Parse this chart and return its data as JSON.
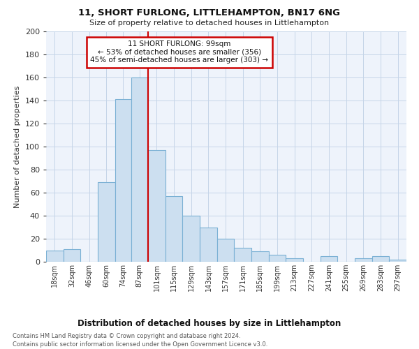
{
  "title": "11, SHORT FURLONG, LITTLEHAMPTON, BN17 6NG",
  "subtitle": "Size of property relative to detached houses in Littlehampton",
  "xlabel": "Distribution of detached houses by size in Littlehampton",
  "ylabel": "Number of detached properties",
  "footnote1": "Contains HM Land Registry data © Crown copyright and database right 2024.",
  "footnote2": "Contains public sector information licensed under the Open Government Licence v3.0.",
  "bar_color": "#ccdff0",
  "bar_edge_color": "#7ab0d4",
  "highlight_line_color": "#cc0000",
  "annotation_line1": "11 SHORT FURLONG: 99sqm",
  "annotation_line2": "← 53% of detached houses are smaller (356)",
  "annotation_line3": "45% of semi-detached houses are larger (303) →",
  "annotation_box_color": "#cc0000",
  "categories": [
    "18sqm",
    "32sqm",
    "46sqm",
    "60sqm",
    "74sqm",
    "87sqm",
    "101sqm",
    "115sqm",
    "129sqm",
    "143sqm",
    "157sqm",
    "171sqm",
    "185sqm",
    "199sqm",
    "213sqm",
    "227sqm",
    "241sqm",
    "255sqm",
    "269sqm",
    "283sqm",
    "297sqm"
  ],
  "values": [
    10,
    11,
    0,
    69,
    141,
    160,
    97,
    57,
    40,
    30,
    20,
    12,
    9,
    6,
    3,
    0,
    5,
    0,
    3,
    5,
    2
  ],
  "bin_edges": [
    18,
    32,
    46,
    60,
    74,
    87,
    101,
    115,
    129,
    143,
    157,
    171,
    185,
    199,
    213,
    227,
    241,
    255,
    269,
    283,
    297,
    311
  ],
  "ylim": [
    0,
    200
  ],
  "yticks": [
    0,
    20,
    40,
    60,
    80,
    100,
    120,
    140,
    160,
    180,
    200
  ],
  "background_color": "#eef3fb",
  "grid_color": "#c5d5e8"
}
